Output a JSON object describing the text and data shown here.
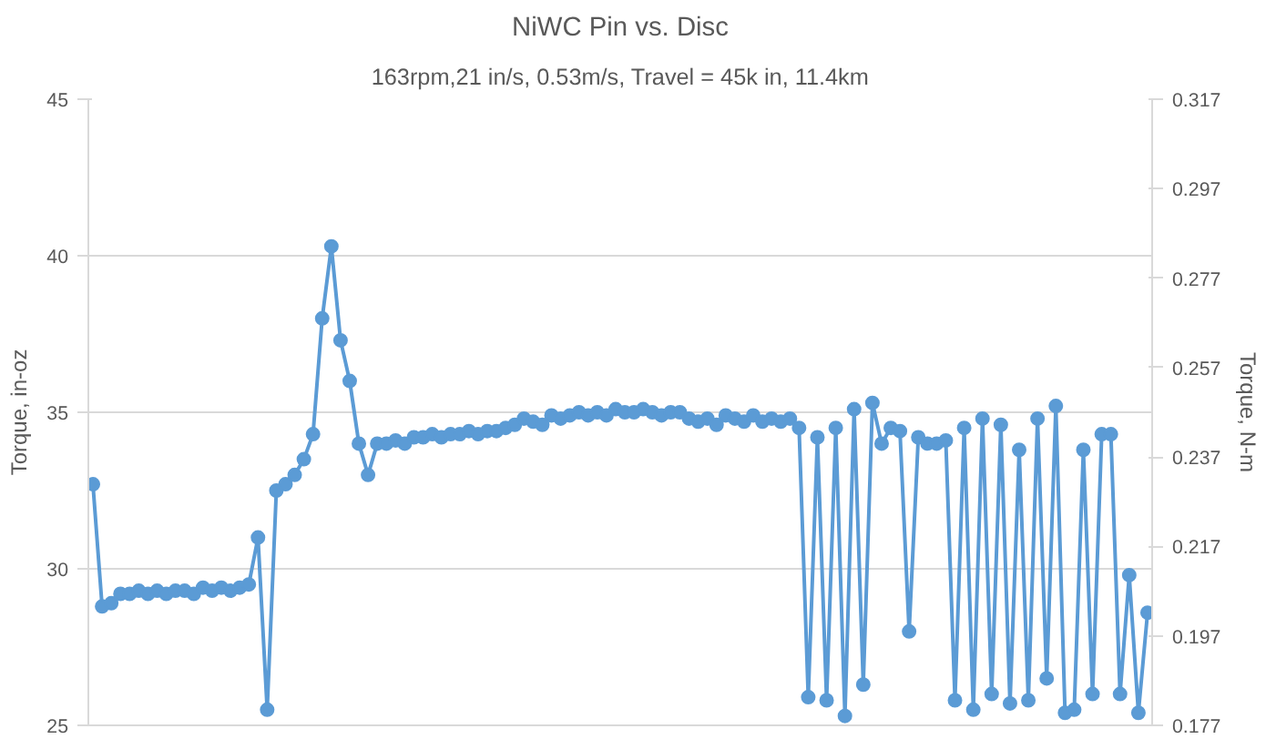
{
  "chart_data": {
    "type": "line",
    "title": "NiWC Pin vs. Disc",
    "subtitle": "163rpm,21 in/s, 0.53m/s, Travel = 45k in, 11.4km",
    "ylabel": "Torque, in-oz",
    "y2label": "Torque, N-m",
    "categories": [
      null,
      null,
      null,
      null,
      null,
      null,
      null,
      null,
      null,
      null,
      null,
      null,
      null,
      null,
      null,
      null,
      null,
      null,
      null,
      null,
      null,
      null,
      null,
      null,
      null,
      null,
      null,
      null,
      null,
      null,
      null,
      null,
      null,
      null,
      null,
      null,
      null,
      null,
      null,
      null,
      null,
      null,
      null,
      null,
      null,
      null,
      null,
      null,
      null,
      null,
      null,
      null,
      null,
      null,
      null,
      null,
      null,
      null,
      null,
      null,
      null,
      null,
      null,
      null,
      null,
      null,
      null,
      null,
      null,
      null,
      null,
      null,
      null,
      null,
      null,
      null,
      null,
      null,
      null,
      null,
      null,
      null,
      null,
      null,
      null,
      null,
      null,
      null,
      null,
      null,
      null,
      null,
      null,
      null,
      null,
      null,
      null,
      null,
      null,
      null,
      null,
      null,
      null,
      null,
      null,
      null,
      null,
      null,
      null,
      null,
      null,
      null,
      null,
      null,
      null,
      null
    ],
    "series": [
      {
        "color": "#5b9bd5",
        "values": [
          32.7,
          28.8,
          28.9,
          29.2,
          29.2,
          29.3,
          29.2,
          29.3,
          29.2,
          29.3,
          29.3,
          29.2,
          29.4,
          29.3,
          29.4,
          29.3,
          29.4,
          29.5,
          31.0,
          25.5,
          32.5,
          32.7,
          33.0,
          33.5,
          34.3,
          38.0,
          40.3,
          37.3,
          36.0,
          34.0,
          33.0,
          34.0,
          34.0,
          34.1,
          34.0,
          34.2,
          34.2,
          34.3,
          34.2,
          34.3,
          34.3,
          34.4,
          34.3,
          34.4,
          34.4,
          34.5,
          34.6,
          34.8,
          34.7,
          34.6,
          34.9,
          34.8,
          34.9,
          35.0,
          34.9,
          35.0,
          34.9,
          35.1,
          35.0,
          35.0,
          35.1,
          35.0,
          34.9,
          35.0,
          35.0,
          34.8,
          34.7,
          34.8,
          34.6,
          34.9,
          34.8,
          34.7,
          34.9,
          34.7,
          34.8,
          34.7,
          34.8,
          34.5,
          25.9,
          34.2,
          25.8,
          34.5,
          25.3,
          35.1,
          26.3,
          35.3,
          34.0,
          34.5,
          34.4,
          28.0,
          34.2,
          34.0,
          34.0,
          34.1,
          25.8,
          34.5,
          25.5,
          34.8,
          26.0,
          34.6,
          25.7,
          33.8,
          25.8,
          34.8,
          26.5,
          35.2,
          25.4,
          25.5,
          33.8,
          26.0,
          34.3,
          34.3,
          26.0,
          29.8,
          25.4,
          28.6
        ]
      }
    ],
    "ylim": [
      25,
      45
    ],
    "yticks": [
      25,
      30,
      35,
      40,
      45
    ],
    "y2lim": [
      0.177,
      0.317
    ],
    "y2ticks": [
      0.177,
      0.197,
      0.217,
      0.237,
      0.257,
      0.277,
      0.297,
      0.317
    ],
    "grid": "y",
    "marker": "circle",
    "line_style": "solid",
    "tick_labels": "y"
  }
}
